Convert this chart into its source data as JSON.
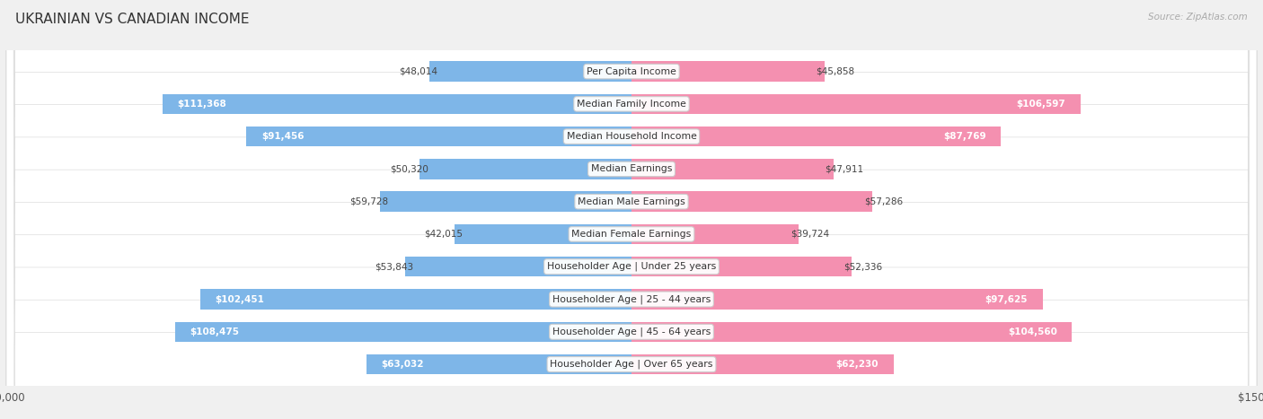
{
  "title": "UKRAINIAN VS CANADIAN INCOME",
  "source": "Source: ZipAtlas.com",
  "max_val": 150000,
  "categories": [
    "Per Capita Income",
    "Median Family Income",
    "Median Household Income",
    "Median Earnings",
    "Median Male Earnings",
    "Median Female Earnings",
    "Householder Age | Under 25 years",
    "Householder Age | 25 - 44 years",
    "Householder Age | 45 - 64 years",
    "Householder Age | Over 65 years"
  ],
  "ukrainian": [
    48014,
    111368,
    91456,
    50320,
    59728,
    42015,
    53843,
    102451,
    108475,
    63032
  ],
  "canadian": [
    45858,
    106597,
    87769,
    47911,
    57286,
    39724,
    52336,
    97625,
    104560,
    62230
  ],
  "ukrainian_labels": [
    "$48,014",
    "$111,368",
    "$91,456",
    "$50,320",
    "$59,728",
    "$42,015",
    "$53,843",
    "$102,451",
    "$108,475",
    "$63,032"
  ],
  "canadian_labels": [
    "$45,858",
    "$106,597",
    "$87,769",
    "$47,911",
    "$57,286",
    "$39,724",
    "$52,336",
    "$97,625",
    "$104,560",
    "$62,230"
  ],
  "color_ukrainian": "#7EB6E8",
  "color_canadian": "#F490B0",
  "bg_color": "#f0f0f0",
  "row_bg": "#ffffff",
  "inside_threshold": 60000,
  "title_fontsize": 11,
  "label_fontsize": 7.8,
  "val_fontsize": 7.5,
  "bar_height": 0.62
}
